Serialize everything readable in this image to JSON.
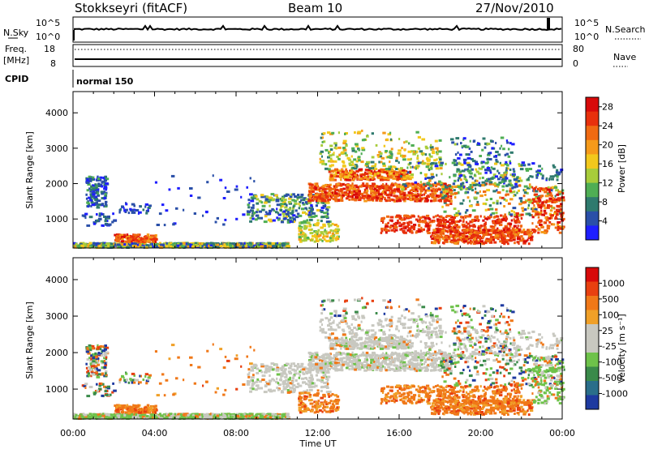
{
  "header": {
    "title_left": "Stokkseyri (fitACF)",
    "title_center": "Beam 10",
    "title_right": "27/Nov/2010",
    "nsky_label": "N.Sky",
    "nsearch_label": "N.Search",
    "freq_label": "Freq.",
    "freq_unit": "[MHz]",
    "nave_label": "Nave",
    "cpid_label": "CPID",
    "cpid_value": "normal 150",
    "nsky_ticks": [
      "10^5",
      "10^0"
    ],
    "nsearch_ticks": [
      "10^5",
      "10^0"
    ],
    "freq_ticks": [
      "18",
      "8"
    ],
    "nave_ticks": [
      "80",
      "0"
    ]
  },
  "chart_data": [
    {
      "type": "heatmap",
      "name": "power-panel",
      "x_tick_labels": [
        "00:00",
        "04:00",
        "08:00",
        "12:00",
        "16:00",
        "20:00",
        "00:00"
      ],
      "xlabel": "Time UT",
      "ylabel": "Slant Range [km]",
      "y_ticks": [
        1000,
        2000,
        3000,
        4000
      ],
      "ylim": [
        180,
        4600
      ],
      "xlim_hours": [
        0,
        24
      ],
      "colorbar": {
        "label": "Power [dB]",
        "ticks": [
          "4",
          "8",
          "12",
          "16",
          "20",
          "24",
          "28"
        ],
        "range": [
          0,
          30
        ],
        "colors": [
          "#1e1eff",
          "#2a4fa8",
          "#2f7a6e",
          "#4fae54",
          "#a8cc3a",
          "#f2c81c",
          "#f59a1a",
          "#f06a12",
          "#e8300c",
          "#d80a0a"
        ]
      }
    },
    {
      "type": "heatmap",
      "name": "velocity-panel",
      "x_tick_labels": [
        "00:00",
        "04:00",
        "08:00",
        "12:00",
        "16:00",
        "20:00",
        "00:00"
      ],
      "xlabel": "Time UT",
      "ylabel": "Slant Range [km]",
      "y_ticks": [
        1000,
        2000,
        3000,
        4000
      ],
      "ylim": [
        180,
        4600
      ],
      "xlim_hours": [
        0,
        24
      ],
      "colorbar": {
        "label": "Velocity [m s⁻¹]",
        "ticks": [
          "1000",
          "500",
          "100",
          "25",
          "-25",
          "-100",
          "-500",
          "-1000"
        ],
        "colors": [
          "#1e3aa0",
          "#2a6e8a",
          "#3a8a4a",
          "#6ec24a",
          "#c8c8c0",
          "#c8c8c0",
          "#f0a028",
          "#f07818",
          "#e84010",
          "#d80a0a"
        ]
      }
    }
  ],
  "colors": {
    "ground_scatter": "#c8c8c0"
  }
}
